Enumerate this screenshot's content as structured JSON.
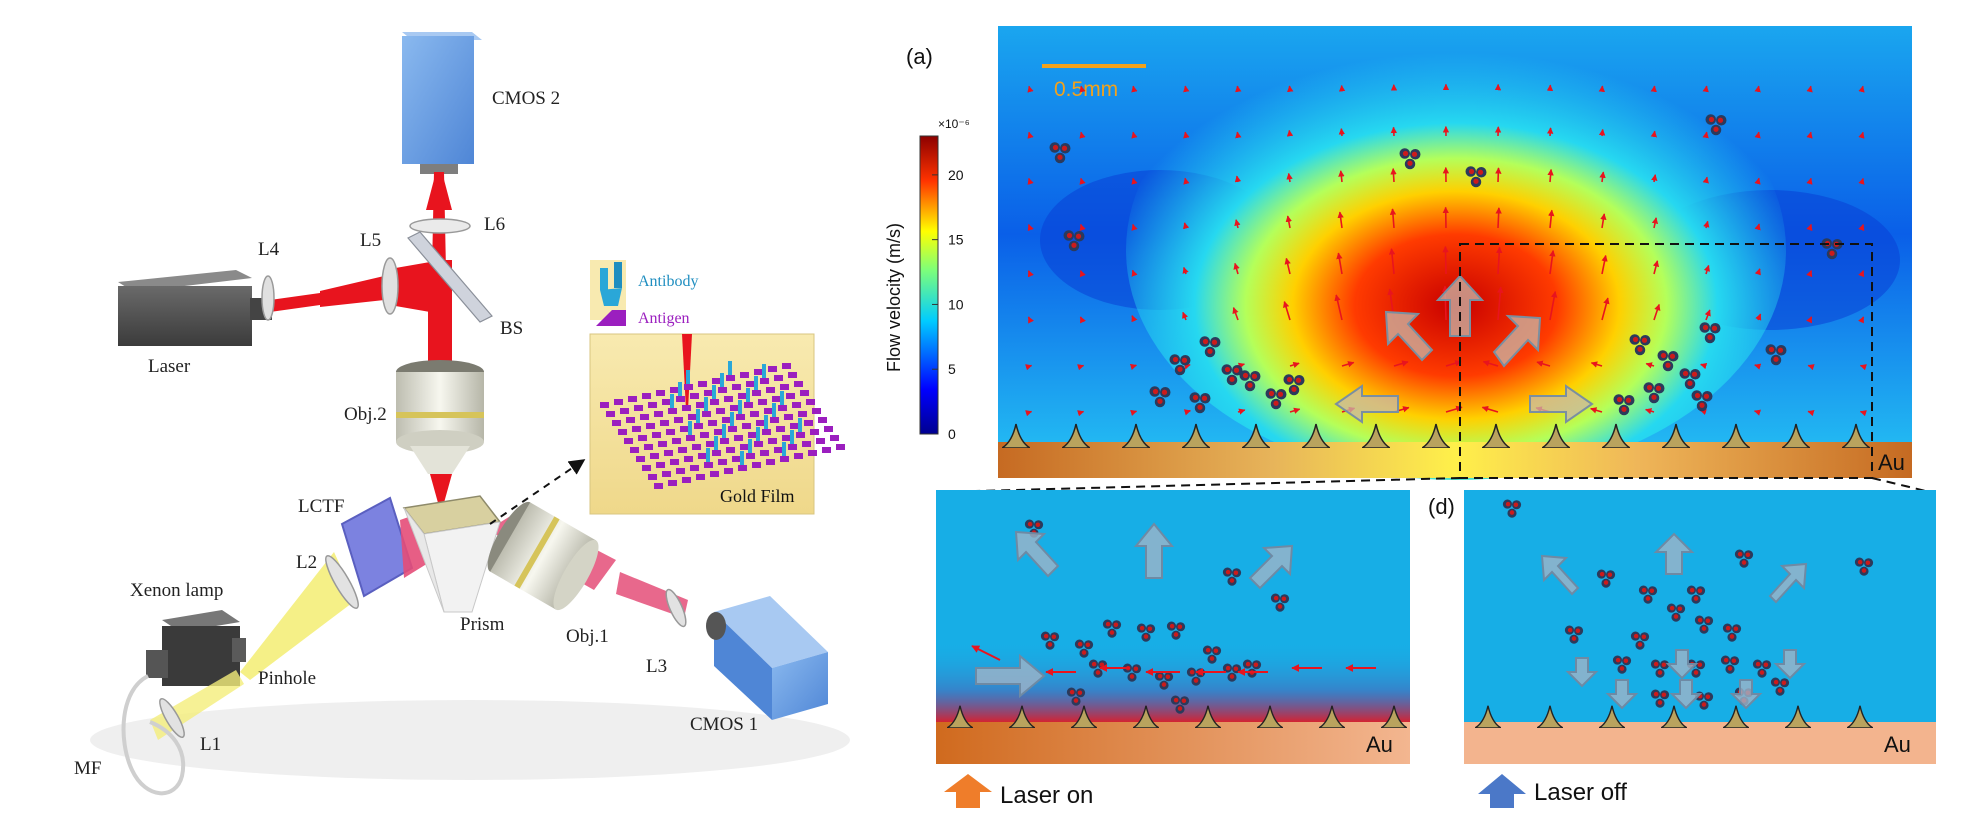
{
  "setup": {
    "components": {
      "cmos2": "CMOS 2",
      "l6": "L6",
      "l4": "L4",
      "l5": "L5",
      "bs": "BS",
      "laser": "Laser",
      "obj2": "Obj.2",
      "lctf": "LCTF",
      "l2": "L2",
      "xenon_lamp": "Xenon lamp",
      "prism": "Prism",
      "obj1": "Obj.1",
      "pinhole": "Pinhole",
      "l3": "L3",
      "l1": "L1",
      "cmos1": "CMOS 1",
      "mf": "MF"
    },
    "inset": {
      "antibody": "Antibody",
      "antigen": "Antigen",
      "gold_film": "Gold Film"
    },
    "colors": {
      "laser_beam": "#e8141e",
      "white_light": "#f4ee7a",
      "camera_blue": "#6fa6e6",
      "gold": "#f3e2a0",
      "antigen": "#9b1fbf",
      "antibody": "#2aa7d8"
    }
  },
  "panel_a": {
    "label": "(a)",
    "scale_bar": "0.5mm",
    "colorbar": {
      "title": "Flow velocity (m/s)",
      "exponent": "×10⁻⁶",
      "ticks": [
        "20",
        "15",
        "10",
        "5",
        "0"
      ],
      "range": [
        0,
        23
      ]
    },
    "substrate": "Au",
    "colors": {
      "scale_bar": "#f2a21c",
      "substrate": "#c9702c"
    }
  },
  "panel_c": {
    "substrate": "Au",
    "legend": "Laser on",
    "colors": {
      "water": "#17aee6",
      "legend_arrow": "#ef7d2a"
    }
  },
  "panel_d": {
    "label": "(d)",
    "substrate": "Au",
    "legend": "Laser off",
    "colors": {
      "water": "#17aee6",
      "legend_arrow": "#4b78c8"
    }
  }
}
